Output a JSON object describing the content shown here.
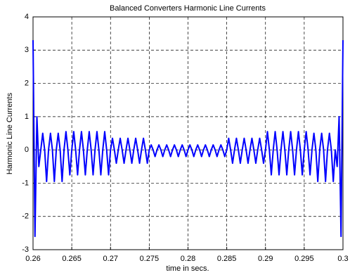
{
  "chart_data": {
    "type": "line",
    "title": "Balanced Converters Harmonic Line Currents",
    "x_label": "time in secs.",
    "y_label": "Harmonic Line Currents",
    "xlim": [
      0.26,
      0.3
    ],
    "xticks": [
      0.26,
      0.265,
      0.27,
      0.275,
      0.28,
      0.285,
      0.29,
      0.295,
      0.3
    ],
    "ylim": [
      -3,
      4
    ],
    "yticks": [
      -3,
      -2,
      -1,
      0,
      1,
      2,
      3,
      4
    ],
    "grid": true,
    "x": [
      0.26,
      0.26025,
      0.2605,
      0.26075,
      0.261,
      0.26125,
      0.2615,
      0.26175,
      0.262,
      0.26225,
      0.2625,
      0.26275,
      0.263,
      0.26325,
      0.2635,
      0.26375,
      0.264,
      0.26425,
      0.2645,
      0.26475,
      0.265,
      0.26525,
      0.2655,
      0.26575,
      0.266,
      0.26625,
      0.2665,
      0.26675,
      0.267,
      0.26725,
      0.2675,
      0.26775,
      0.268,
      0.26825,
      0.2685,
      0.26875,
      0.269,
      0.26925,
      0.2695,
      0.26975,
      0.27,
      0.27025,
      0.2705,
      0.27075,
      0.271,
      0.27125,
      0.2715,
      0.27175,
      0.272,
      0.27225,
      0.2725,
      0.27275,
      0.273,
      0.27325,
      0.2735,
      0.27375,
      0.274,
      0.27425,
      0.2745,
      0.27475,
      0.275,
      0.27525,
      0.2755,
      0.27575,
      0.276,
      0.27625,
      0.2765,
      0.27675,
      0.277,
      0.27725,
      0.2775,
      0.27775,
      0.278,
      0.27825,
      0.2785,
      0.27875,
      0.279,
      0.27925,
      0.2795,
      0.27975,
      0.28,
      0.28025,
      0.2805,
      0.28075,
      0.281,
      0.28125,
      0.2815,
      0.28175,
      0.282,
      0.28225,
      0.2825,
      0.28275,
      0.283,
      0.28325,
      0.2835,
      0.28375,
      0.284,
      0.28425,
      0.2845,
      0.28475,
      0.285,
      0.28525,
      0.2855,
      0.28575,
      0.286,
      0.28625,
      0.2865,
      0.28675,
      0.287,
      0.28725,
      0.2875,
      0.28775,
      0.288,
      0.28825,
      0.2885,
      0.28875,
      0.289,
      0.28925,
      0.2895,
      0.28975,
      0.29,
      0.29025,
      0.2905,
      0.29075,
      0.291,
      0.29125,
      0.2915,
      0.29175,
      0.292,
      0.29225,
      0.2925,
      0.29275,
      0.293,
      0.29325,
      0.2935,
      0.29375,
      0.294,
      0.29425,
      0.2945,
      0.29475,
      0.295,
      0.29525,
      0.2955,
      0.29575,
      0.296,
      0.29625,
      0.2965,
      0.29675,
      0.297,
      0.29725,
      0.2975,
      0.29775,
      0.298,
      0.29825,
      0.2985,
      0.29875,
      0.299,
      0.29925,
      0.2995,
      0.29975,
      0.3
    ],
    "series": [
      {
        "name": "Harmonic Line Currents",
        "color": "#0000ff",
        "values": [
          3.3,
          -2.6,
          1.0,
          -0.5,
          0,
          0.5,
          0,
          -0.95,
          0,
          0.5,
          0,
          -0.95,
          0,
          0.5,
          0,
          -0.95,
          0,
          0.55,
          0,
          -0.75,
          0,
          0.55,
          0,
          -0.75,
          0,
          0.55,
          0,
          -0.75,
          0,
          0.55,
          0,
          -0.75,
          0,
          0.55,
          0,
          -0.75,
          0,
          0.55,
          0,
          -0.75,
          0,
          0.35,
          0,
          -0.4,
          0,
          0.35,
          0,
          -0.4,
          0,
          0.35,
          0,
          -0.4,
          0,
          0.35,
          0,
          -0.4,
          0,
          0.35,
          0,
          -0.4,
          0,
          0.15,
          0,
          -0.2,
          0,
          0.15,
          0,
          -0.2,
          0,
          0.15,
          0,
          -0.2,
          0,
          0.15,
          0,
          -0.2,
          0,
          0.15,
          0,
          -0.2,
          0,
          0.15,
          0,
          -0.2,
          0,
          0.15,
          0,
          -0.2,
          0,
          0.15,
          0,
          -0.2,
          0,
          0.15,
          0,
          -0.2,
          0,
          0.15,
          0,
          -0.2,
          0,
          0.35,
          0,
          -0.4,
          0,
          0.35,
          0,
          -0.4,
          0,
          0.35,
          0,
          -0.4,
          0,
          0.35,
          0,
          -0.4,
          0,
          0.35,
          0,
          -0.4,
          0,
          0.55,
          0,
          -0.75,
          0,
          0.55,
          0,
          -0.75,
          0,
          0.55,
          0,
          -0.75,
          0,
          0.55,
          0,
          -0.75,
          0,
          0.55,
          0,
          -0.75,
          0,
          0.55,
          0,
          -0.75,
          0,
          0.5,
          0,
          -0.95,
          0,
          0.5,
          0,
          -0.95,
          0,
          0.5,
          0,
          -0.95,
          0,
          -0.5,
          1.0,
          -2.6,
          3.3
        ]
      }
    ]
  }
}
